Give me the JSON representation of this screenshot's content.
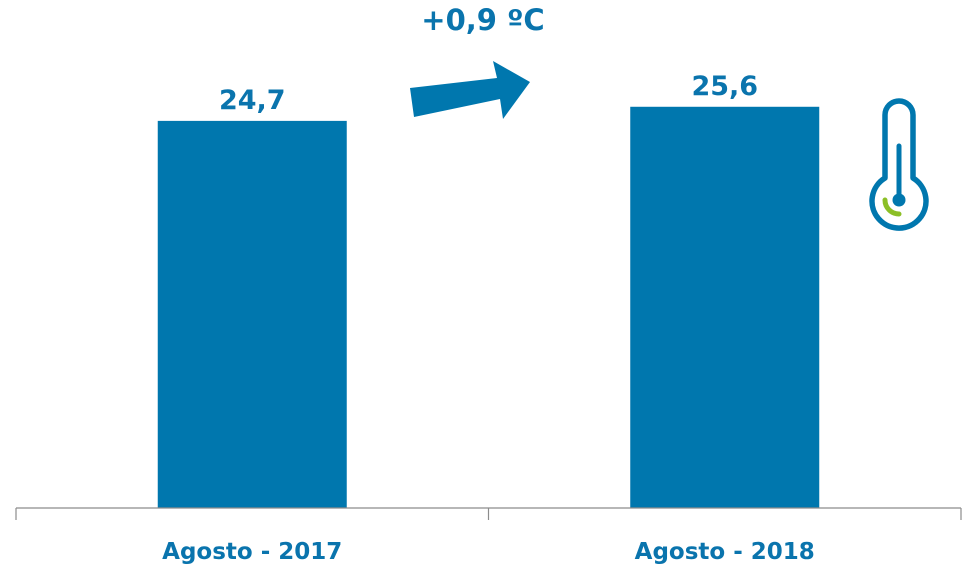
{
  "chart_data": {
    "type": "bar",
    "categories": [
      "Agosto - 2017",
      "Agosto - 2018"
    ],
    "values": [
      24.7,
      25.6
    ],
    "value_labels": [
      "24,7",
      "25,6"
    ],
    "ylim": [
      0,
      27.5
    ],
    "grid": false,
    "legend": "none",
    "annotation": "+0,9 ºC",
    "bar_color": "#0077ae",
    "text_color": "#0a74ad",
    "icons": [
      "trend-arrow-icon",
      "thermometer-icon"
    ],
    "icon_colors": {
      "thermometer_outline": "#0077ae",
      "thermometer_accent": "#8cbf26"
    }
  }
}
